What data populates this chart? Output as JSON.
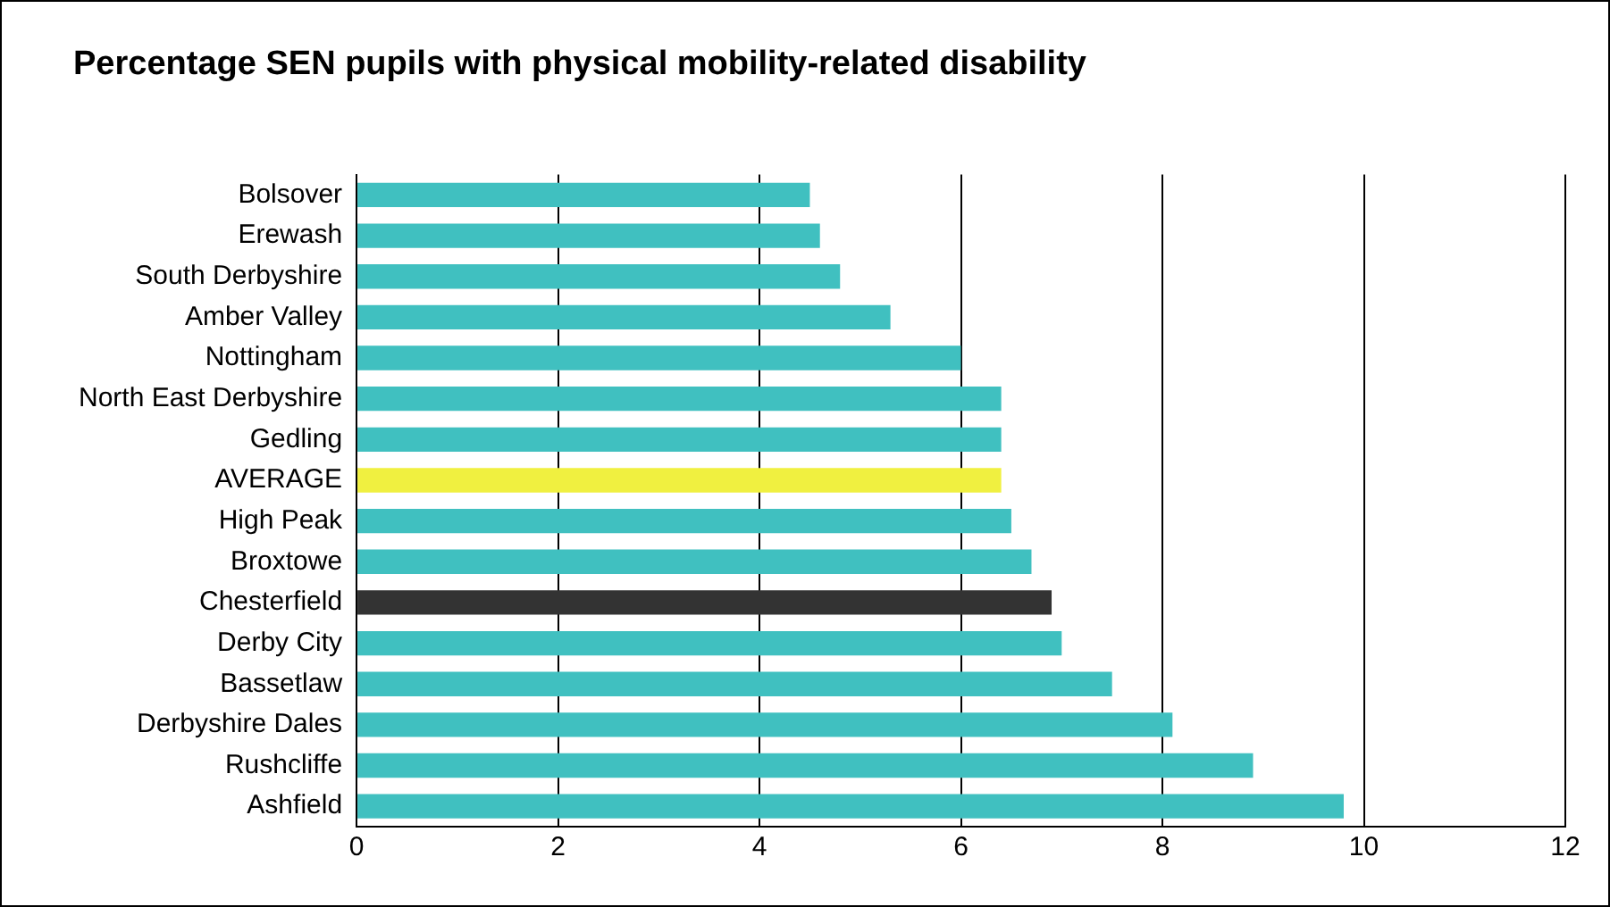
{
  "chart_data": {
    "type": "bar",
    "orientation": "horizontal",
    "title": "Percentage SEN pupils with physical mobility-related disability",
    "categories": [
      "Bolsover",
      "Erewash",
      "South Derbyshire",
      "Amber Valley",
      "Nottingham",
      "North East Derbyshire",
      "Gedling",
      "AVERAGE",
      "High Peak",
      "Broxtowe",
      "Chesterfield",
      "Derby City",
      "Bassetlaw",
      "Derbyshire Dales",
      "Rushcliffe",
      "Ashfield"
    ],
    "values": [
      4.5,
      4.6,
      4.8,
      5.3,
      6.0,
      6.4,
      6.4,
      6.4,
      6.5,
      6.7,
      6.9,
      7.0,
      7.5,
      8.1,
      8.9,
      9.8
    ],
    "colors": [
      "#40c0c0",
      "#40c0c0",
      "#40c0c0",
      "#40c0c0",
      "#40c0c0",
      "#40c0c0",
      "#40c0c0",
      "#f0f040",
      "#40c0c0",
      "#40c0c0",
      "#333333",
      "#40c0c0",
      "#40c0c0",
      "#40c0c0",
      "#40c0c0",
      "#40c0c0"
    ],
    "xlim": [
      0,
      12
    ],
    "xticks": [
      0,
      2,
      4,
      6,
      8,
      10,
      12
    ],
    "grid": "x",
    "legend": false
  }
}
